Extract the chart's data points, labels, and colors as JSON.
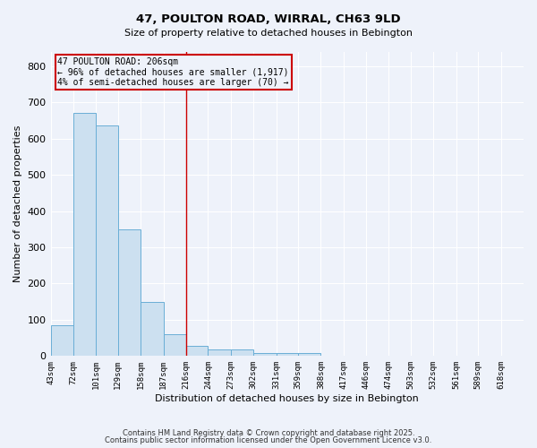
{
  "title1": "47, POULTON ROAD, WIRRAL, CH63 9LD",
  "title2": "Size of property relative to detached houses in Bebington",
  "xlabel": "Distribution of detached houses by size in Bebington",
  "ylabel": "Number of detached properties",
  "bins": [
    "43sqm",
    "72sqm",
    "101sqm",
    "129sqm",
    "158sqm",
    "187sqm",
    "216sqm",
    "244sqm",
    "273sqm",
    "302sqm",
    "331sqm",
    "359sqm",
    "388sqm",
    "417sqm",
    "446sqm",
    "474sqm",
    "503sqm",
    "532sqm",
    "561sqm",
    "589sqm",
    "618sqm"
  ],
  "bin_edges": [
    43,
    72,
    101,
    129,
    158,
    187,
    216,
    244,
    273,
    302,
    331,
    359,
    388,
    417,
    446,
    474,
    503,
    532,
    561,
    589,
    618
  ],
  "values": [
    85,
    670,
    635,
    350,
    148,
    60,
    27,
    18,
    17,
    8,
    8,
    8,
    0,
    0,
    0,
    0,
    0,
    0,
    0,
    0
  ],
  "bar_color": "#cce0f0",
  "bar_edge_color": "#6aaed6",
  "red_line_x": 216,
  "ylim": [
    0,
    840
  ],
  "yticks": [
    0,
    100,
    200,
    300,
    400,
    500,
    600,
    700,
    800
  ],
  "annotation_line1": "47 POULTON ROAD: 206sqm",
  "annotation_line2": "← 96% of detached houses are smaller (1,917)",
  "annotation_line3": "4% of semi-detached houses are larger (70) →",
  "annotation_box_color": "#cc0000",
  "background_color": "#eef2fa",
  "grid_color": "#ffffff",
  "footer1": "Contains HM Land Registry data © Crown copyright and database right 2025.",
  "footer2": "Contains public sector information licensed under the Open Government Licence v3.0."
}
